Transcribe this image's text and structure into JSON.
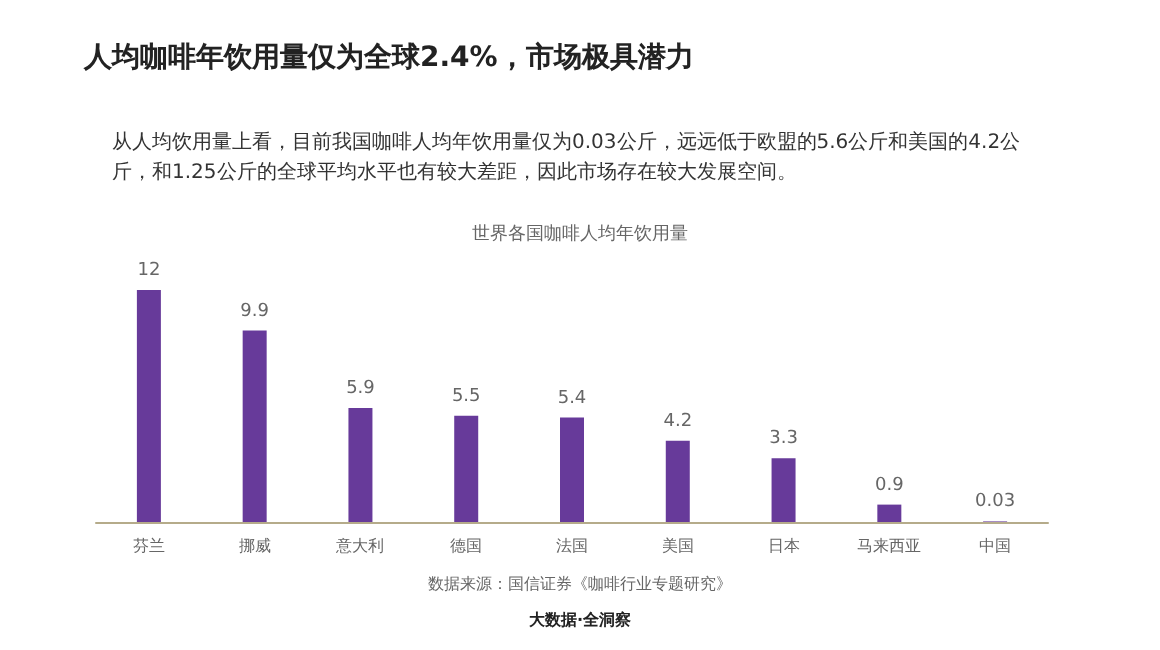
{
  "chart_data": {
    "type": "bar",
    "title": "人均咖啡年饮用量仅为全球2.4%，市场极具潜力",
    "subtitle": "从人均饮用量上看，目前我国咖啡人均年饮用量仅为0.03公斤，远远低于欧盟的5.6公斤和美国的4.2公斤，和1.25公斤的全球平均水平也有较大差距，因此市场存在较大发展空间。",
    "categories": [
      "芬兰",
      "挪威",
      "意大利",
      "德国",
      "法国",
      "美国",
      "日本",
      "马来西亚",
      "中国"
    ],
    "series": [
      {
        "color": "#673a9a",
        "values": [
          12,
          9.9,
          5.9,
          5.5,
          5.4,
          4.2,
          3.3,
          0.9,
          0.03
        ]
      }
    ],
    "data_labels": true,
    "annotations": [
      "世界各国咖啡人均年饮用量",
      "数据来源：国信证券《咖啡行业专题研究》",
      "大数据·全洞察"
    ]
  }
}
